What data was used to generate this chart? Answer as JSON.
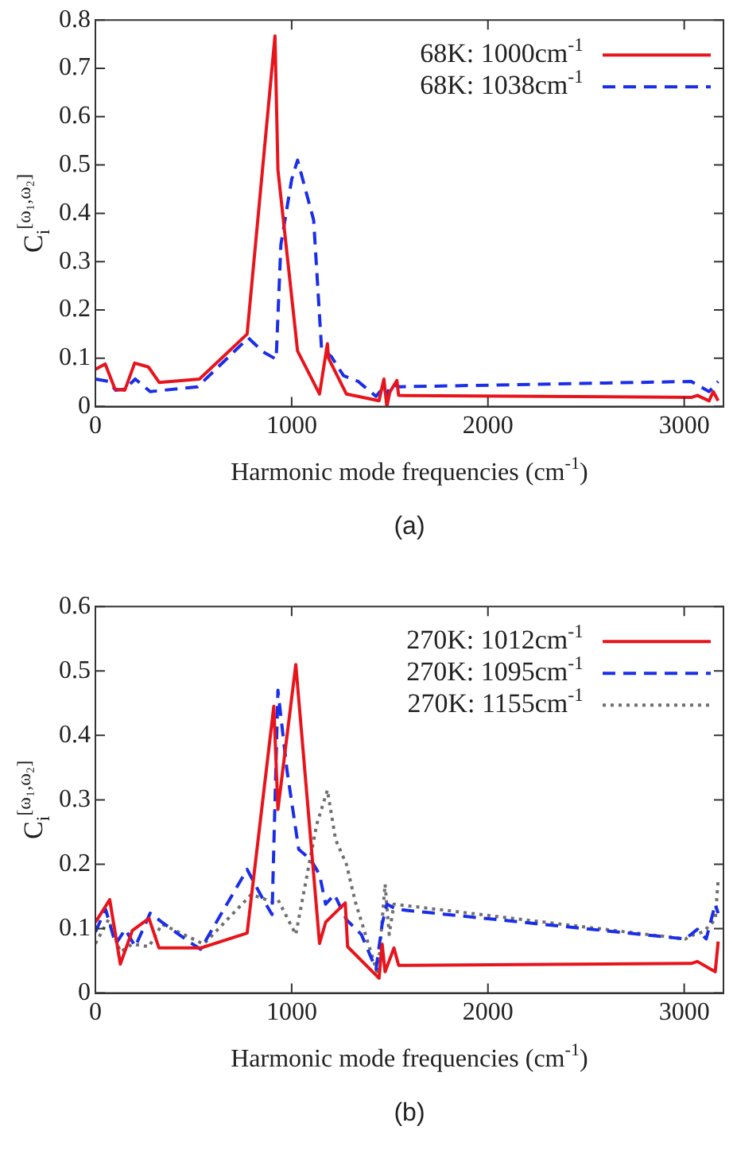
{
  "chart_data": [
    {
      "type": "line",
      "xlabel": "Harmonic mode frequencies (cm$^{-1}$)",
      "ylabel": "C$_{i}$$^{[ω₁,ω₂]}$",
      "annotations": [
        "(a)"
      ],
      "xlim": [
        0,
        3200
      ],
      "xticks": [
        0,
        1000,
        2000,
        3000
      ],
      "ylim": [
        0,
        0.8
      ],
      "yticks": [
        0,
        0.1,
        0.2,
        0.3,
        0.4,
        0.5,
        0.6,
        0.7,
        0.8
      ],
      "grid": false,
      "legend": "top right",
      "marker": "none",
      "series": [
        {
          "name": "68K: 1000cm$^{-1}$",
          "color": "#e8141c",
          "line_style": "solid",
          "x": [
            0,
            50,
            100,
            150,
            200,
            270,
            325,
            530,
            773,
            915,
            930,
            1030,
            1142,
            1182,
            1188,
            1279,
            1445,
            1470,
            1485,
            1500,
            1536,
            1545,
            3036,
            3067,
            3127,
            3148,
            3173
          ],
          "values": [
            0.077,
            0.088,
            0.036,
            0.034,
            0.09,
            0.082,
            0.05,
            0.057,
            0.15,
            0.767,
            0.49,
            0.115,
            0.026,
            0.13,
            0.1,
            0.026,
            0.012,
            0.057,
            0,
            0.03,
            0.054,
            0.023,
            0.019,
            0.023,
            0.012,
            0.031,
            0.012
          ]
        },
        {
          "name": "68K: 1038cm$^{-1}$",
          "color": "#1a2ee8",
          "line_style": "dashed",
          "x": [
            0,
            67,
            103,
            150,
            203,
            279,
            521,
            779,
            855,
            921,
            945,
            1000,
            1030,
            1112,
            1152,
            1203,
            1264,
            1339,
            1430,
            1470,
            1485,
            1506,
            1552,
            3036,
            3127,
            3173
          ],
          "values": [
            0.057,
            0.052,
            0.034,
            0.036,
            0.057,
            0.031,
            0.041,
            0.142,
            0.113,
            0.098,
            0.335,
            0.47,
            0.51,
            0.386,
            0.121,
            0.103,
            0.064,
            0.052,
            0.021,
            0.041,
            0.023,
            0.046,
            0.041,
            0.052,
            0.031,
            0.052
          ]
        }
      ]
    },
    {
      "type": "line",
      "xlabel": "Harmonic mode frequencies (cm$^{-1}$)",
      "ylabel": "C$_{i}$$^{[ω₁,ω₂]}$",
      "annotations": [
        "(b)"
      ],
      "xlim": [
        0,
        3200
      ],
      "xticks": [
        0,
        1000,
        2000,
        3000
      ],
      "ylim": [
        0,
        0.6
      ],
      "yticks": [
        0,
        0.1,
        0.2,
        0.3,
        0.4,
        0.5,
        0.6
      ],
      "grid": false,
      "legend": "top right",
      "marker": "none",
      "series": [
        {
          "name": "270K: 1012cm$^{-1}$",
          "color": "#e8141c",
          "line_style": "solid",
          "x": [
            0,
            73,
            127,
            188,
            273,
            324,
            536,
            773,
            909,
            930,
            1021,
            1142,
            1173,
            1273,
            1285,
            1445,
            1461,
            1476,
            1521,
            1545,
            3036,
            3067,
            3158,
            3173
          ],
          "values": [
            0.11,
            0.145,
            0.045,
            0.097,
            0.116,
            0.07,
            0.07,
            0.093,
            0.445,
            0.285,
            0.51,
            0.077,
            0.11,
            0.14,
            0.072,
            0.023,
            0.076,
            0.033,
            0.07,
            0.043,
            0.046,
            0.049,
            0.033,
            0.08
          ]
        },
        {
          "name": "270K: 1095cm$^{-1}$",
          "color": "#1a2ee8",
          "line_style": "dashed",
          "x": [
            0,
            52,
            103,
            152,
            203,
            279,
            339,
            476,
            536,
            773,
            855,
            900,
            930,
            976,
            1036,
            1097,
            1142,
            1173,
            1218,
            1279,
            1355,
            1430,
            1461,
            1485,
            1536,
            3006,
            3067,
            3112,
            3158,
            3173
          ],
          "values": [
            0.095,
            0.13,
            0.076,
            0.099,
            0.072,
            0.124,
            0.11,
            0.08,
            0.068,
            0.192,
            0.145,
            0.122,
            0.47,
            0.346,
            0.223,
            0.207,
            0.184,
            0.138,
            0.153,
            0.114,
            0.091,
            0.037,
            0.107,
            0.138,
            0.13,
            0.084,
            0.099,
            0.084,
            0.138,
            0.124
          ]
        },
        {
          "name": "270K: 1155cm$^{-1}$",
          "color": "#707070",
          "line_style": "dotted",
          "x": [
            0,
            67,
            127,
            188,
            273,
            339,
            552,
            794,
            900,
            930,
            1021,
            1127,
            1182,
            1224,
            1279,
            1324,
            1439,
            1476,
            1497,
            1521,
            3006,
            3052,
            3097,
            3158,
            3173
          ],
          "values": [
            0.077,
            0.114,
            0.064,
            0.076,
            0.072,
            0.107,
            0.076,
            0.153,
            0.142,
            0.145,
            0.091,
            0.261,
            0.315,
            0.238,
            0.2,
            0.142,
            0.029,
            0.169,
            0.091,
            0.138,
            0.084,
            0.091,
            0.095,
            0.114,
            0.176
          ]
        }
      ]
    }
  ]
}
